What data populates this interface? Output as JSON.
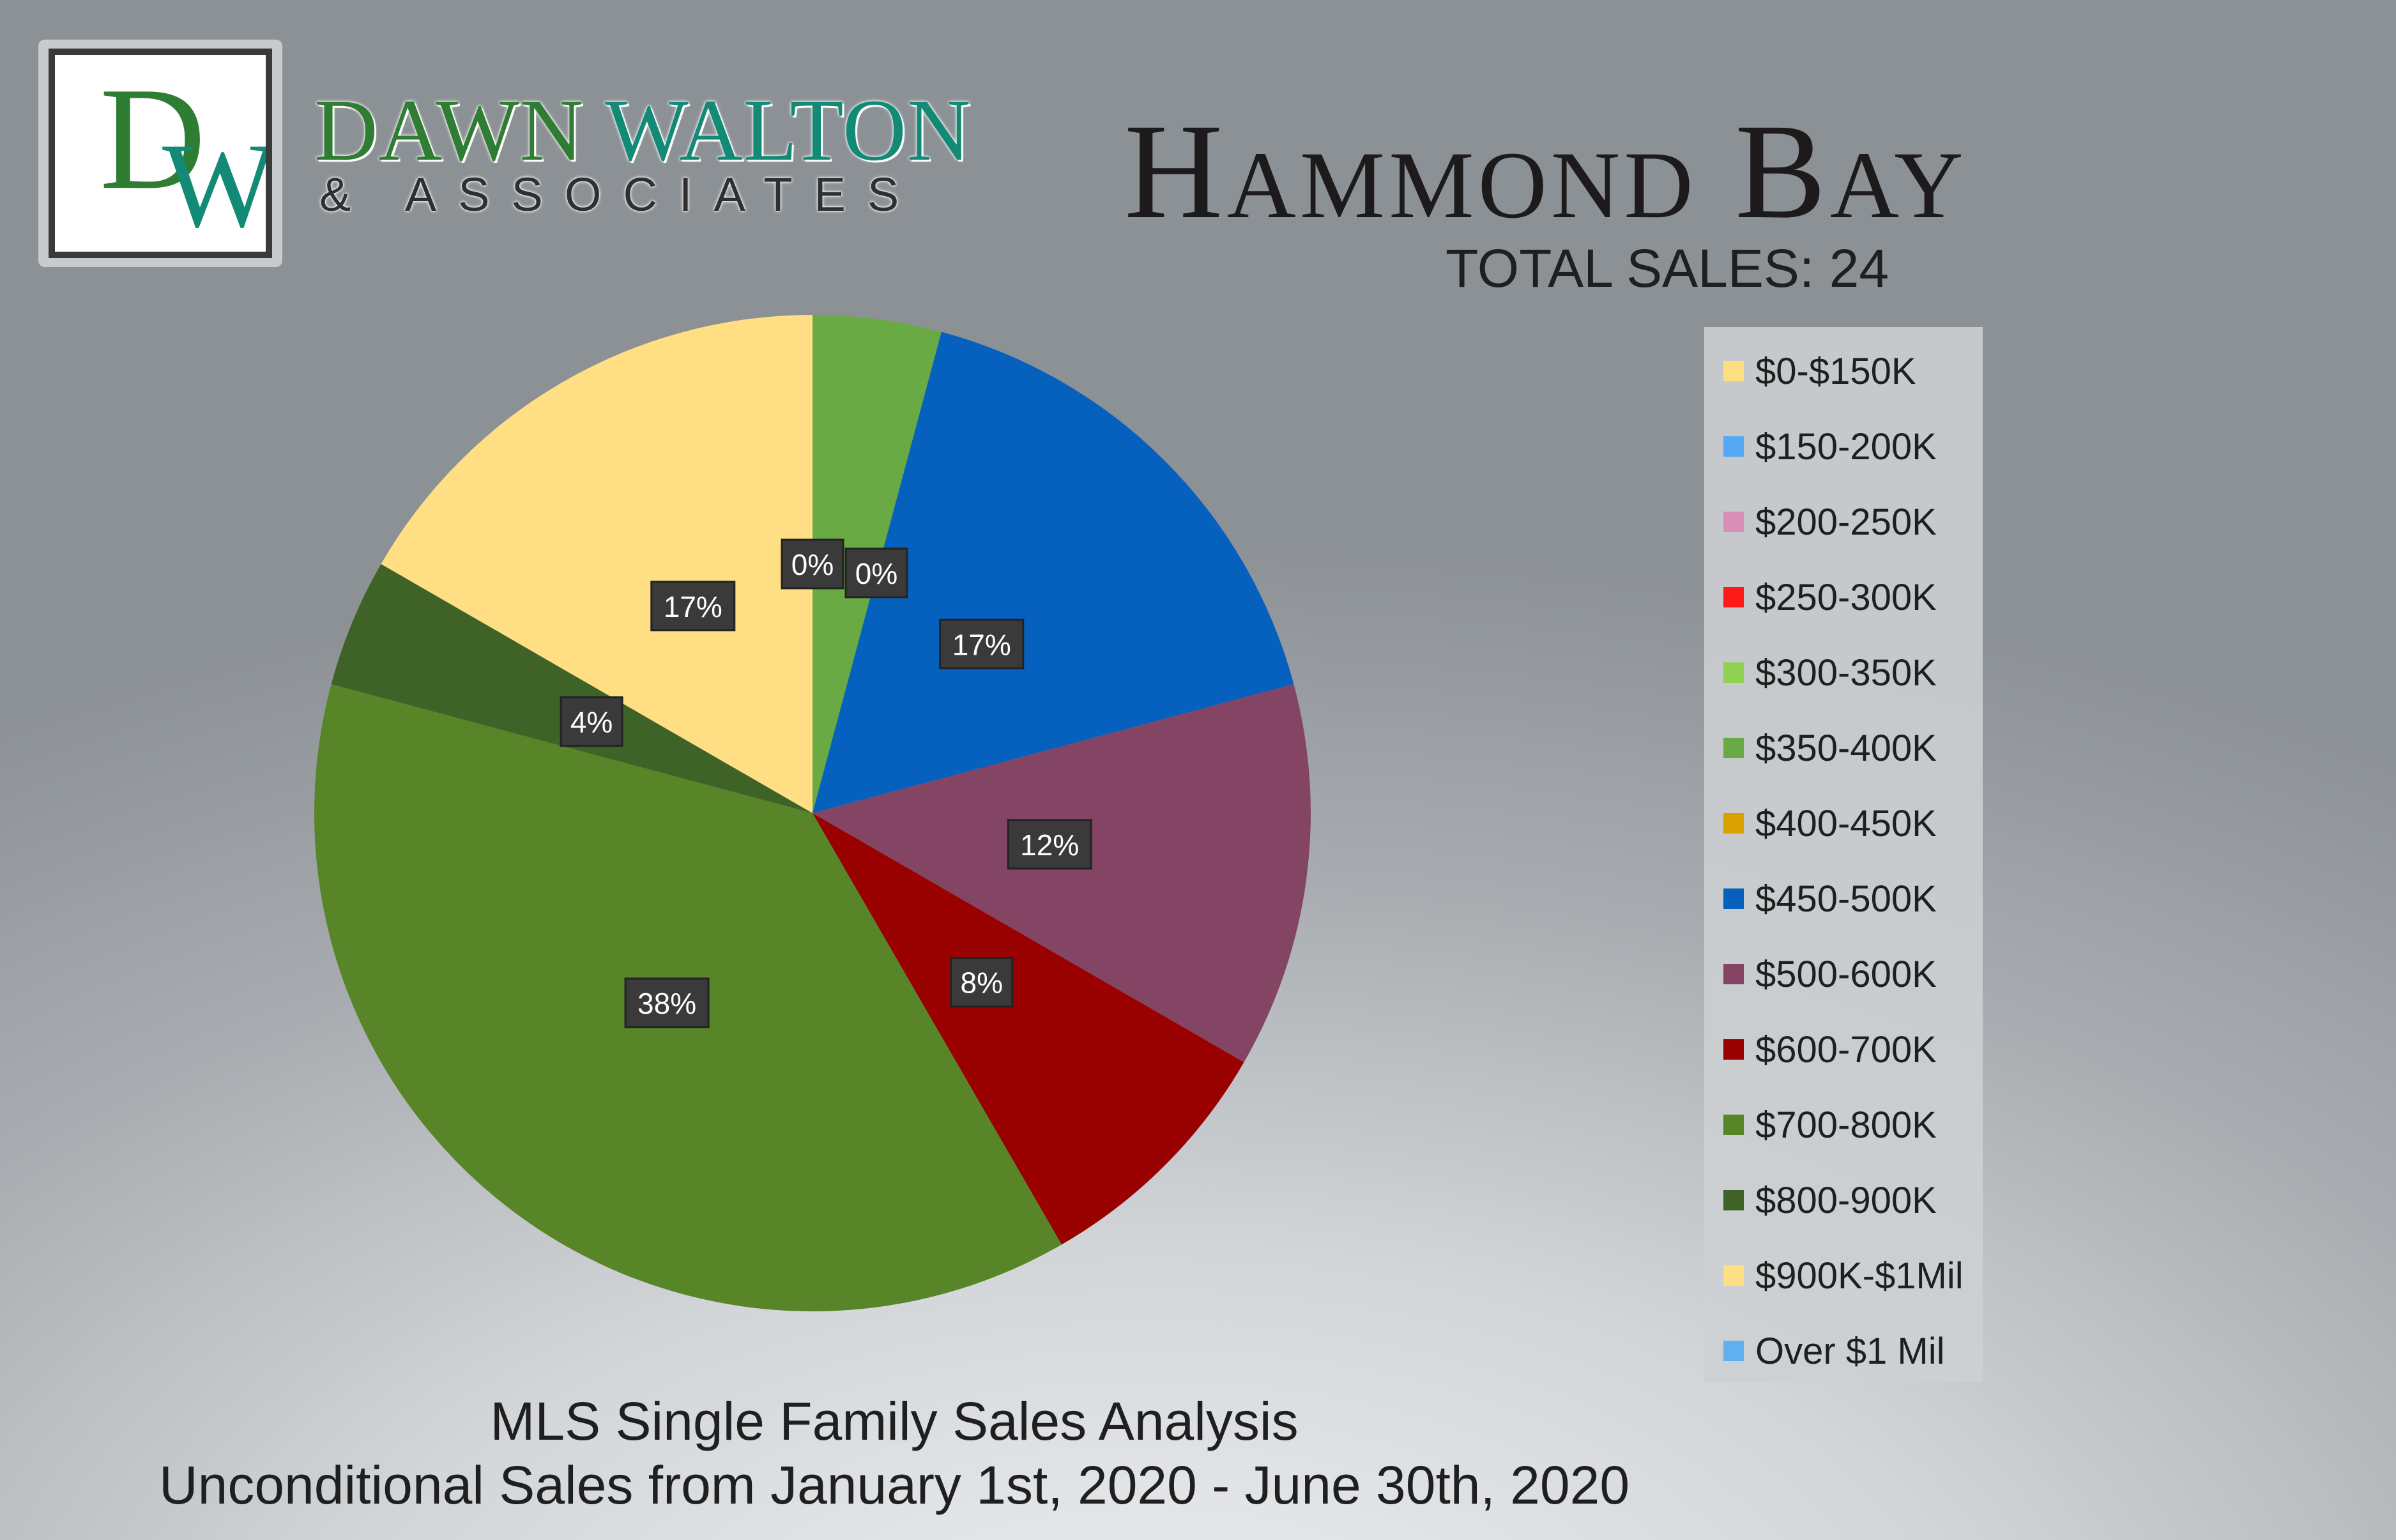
{
  "brand": {
    "monogram": "DW",
    "name_part1": "DAWN ",
    "name_part2": "WALTON",
    "subtitle": "& ASSOCIATES"
  },
  "header": {
    "title": "Hammond Bay",
    "total_sales": "TOTAL SALES: 24"
  },
  "footer": {
    "line1": "MLS Single Family Sales Analysis",
    "line2": "Unconditional Sales from January 1st, 2020 - June 30th, 2020"
  },
  "colors": {
    "label_bg": "#3a3a3a",
    "label_text": "#ffffff",
    "brand_green": "#2e7d32",
    "brand_teal": "#138a76"
  },
  "chart_data": {
    "type": "pie",
    "title": "Hammond Bay",
    "categories": [
      "$0-$150K",
      "$150-200K",
      "$200-250K",
      "$250-300K",
      "$300-350K",
      "$350-400K",
      "$400-450K",
      "$450-500K",
      "$500-600K",
      "$600-700K",
      "$700-800K",
      "$800-900K",
      "$900K-$1Mil",
      "Over $1 Mil"
    ],
    "values": [
      0,
      0,
      0,
      0,
      0,
      1,
      0,
      4,
      3,
      2,
      9,
      1,
      4,
      0
    ],
    "colors": [
      "#ffde7f",
      "#55a8f3",
      "#d98fb5",
      "#ff1a1a",
      "#8fd14f",
      "#6aaa45",
      "#d8a100",
      "#0560be",
      "#844564",
      "#990000",
      "#588527",
      "#3f6327",
      "#ffde84",
      "#60b0f0"
    ],
    "data_labels": [
      {
        "text": "0%",
        "category": "$0-$150K"
      },
      {
        "text": "0%",
        "category": "$150-200K"
      },
      {
        "text": "17%",
        "category": "$450-500K"
      },
      {
        "text": "12%",
        "category": "$500-600K"
      },
      {
        "text": "8%",
        "category": "$600-700K"
      },
      {
        "text": "38%",
        "category": "$700-800K"
      },
      {
        "text": "4%",
        "category": "$800-900K"
      },
      {
        "text": "17%",
        "category": "$900K-$1Mil"
      }
    ],
    "legend_position": "right",
    "start_angle_deg": 0,
    "direction": "clockwise"
  }
}
